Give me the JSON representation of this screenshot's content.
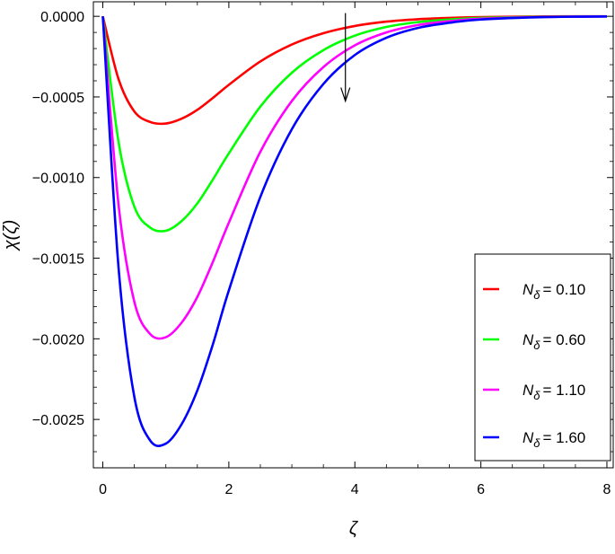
{
  "chart_data": {
    "type": "line",
    "xlabel": "ζ",
    "ylabel": "χ(ζ)",
    "xlim": [
      -0.15,
      8.1
    ],
    "ylim": [
      -0.0028,
      9e-05
    ],
    "x_ticks": [
      0,
      2,
      4,
      6,
      8
    ],
    "x_tick_labels": [
      "0",
      "2",
      "4",
      "6",
      "8"
    ],
    "y_ticks": [
      0.0,
      -0.0005,
      -0.001,
      -0.0015,
      -0.002,
      -0.0025
    ],
    "y_tick_labels": [
      "0.0000",
      "−0.0005",
      "−0.0010",
      "−0.0015",
      "−0.0020",
      "−0.0025"
    ],
    "grid": false,
    "legend_position": "bottom-right",
    "annotation": "arrow near ζ = 3.85 pointing downward (direction of increasing N_δ)",
    "series": [
      {
        "name_symbol": "N",
        "name_sub": "δ",
        "name_value": "= 0.10",
        "color": "#ff0000",
        "x": [
          0,
          0.25,
          0.5,
          0.75,
          1.0,
          1.25,
          1.5,
          1.75,
          2.0,
          2.5,
          3.0,
          3.5,
          4.0,
          4.5,
          5.0,
          5.5,
          6.0,
          7.0,
          8.0
        ],
        "values": [
          0,
          -0.00039,
          -0.00059,
          -0.000655,
          -0.000665,
          -0.000635,
          -0.00058,
          -0.000505,
          -0.000425,
          -0.00028,
          -0.000175,
          -0.000105,
          -6e-05,
          -3.3e-05,
          -1.8e-05,
          -1e-05,
          -5e-06,
          -1e-06,
          0
        ]
      },
      {
        "name_symbol": "N",
        "name_sub": "δ",
        "name_value": "= 0.60",
        "color": "#00ff00",
        "x": [
          0,
          0.25,
          0.5,
          0.75,
          1.0,
          1.25,
          1.5,
          1.75,
          2.0,
          2.5,
          3.0,
          3.5,
          4.0,
          4.5,
          5.0,
          5.5,
          6.0,
          7.0,
          8.0
        ],
        "values": [
          0,
          -0.00078,
          -0.00118,
          -0.00131,
          -0.00133,
          -0.00127,
          -0.00116,
          -0.00101,
          -0.00085,
          -0.00056,
          -0.00035,
          -0.00021,
          -0.00012,
          -6.6e-05,
          -3.6e-05,
          -2e-05,
          -1e-05,
          -3e-06,
          -1e-06
        ]
      },
      {
        "name_symbol": "N",
        "name_sub": "δ",
        "name_value": "= 1.10",
        "color": "#ff00ff",
        "x": [
          0,
          0.25,
          0.5,
          0.75,
          1.0,
          1.25,
          1.5,
          1.75,
          2.0,
          2.5,
          3.0,
          3.5,
          4.0,
          4.5,
          5.0,
          5.5,
          6.0,
          7.0,
          8.0
        ],
        "values": [
          0,
          -0.00117,
          -0.00177,
          -0.00197,
          -0.00199,
          -0.0019,
          -0.00174,
          -0.00152,
          -0.00128,
          -0.00084,
          -0.000525,
          -0.000315,
          -0.00018,
          -0.0001,
          -5.4e-05,
          -3e-05,
          -1.5e-05,
          -4e-06,
          -1e-06
        ]
      },
      {
        "name_symbol": "N",
        "name_sub": "δ",
        "name_value": "= 1.60",
        "color": "#0000ff",
        "x": [
          0,
          0.25,
          0.5,
          0.75,
          1.0,
          1.25,
          1.5,
          1.75,
          2.0,
          2.5,
          3.0,
          3.5,
          4.0,
          4.5,
          5.0,
          5.5,
          6.0,
          7.0,
          8.0
        ],
        "values": [
          0,
          -0.00156,
          -0.00236,
          -0.00263,
          -0.00265,
          -0.00253,
          -0.00232,
          -0.00203,
          -0.0017,
          -0.00112,
          -0.0007,
          -0.00042,
          -0.00024,
          -0.000133,
          -7.2e-05,
          -4e-05,
          -2e-05,
          -5e-06,
          -1e-06
        ]
      }
    ]
  }
}
